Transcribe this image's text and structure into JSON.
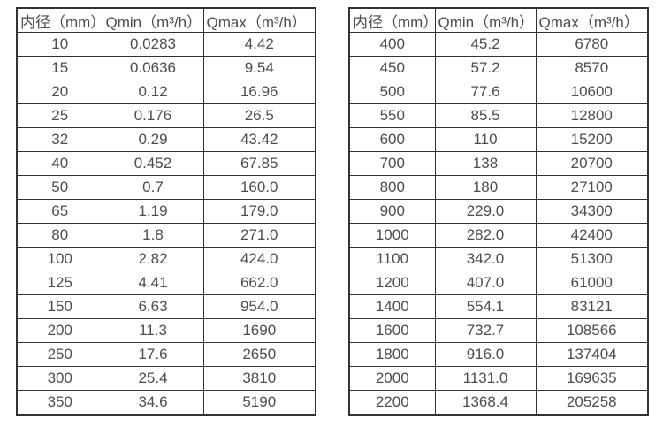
{
  "colors": {
    "border": "#333333",
    "text": "#4d4d4d",
    "background": "#ffffff"
  },
  "headers": [
    "内径（mm）",
    "Qmin（m³/h）",
    "Qmax（m³/h）"
  ],
  "tables": [
    {
      "name": "left",
      "rows": [
        [
          "10",
          "0.0283",
          "4.42"
        ],
        [
          "15",
          "0.0636",
          "9.54"
        ],
        [
          "20",
          "0.12",
          "16.96"
        ],
        [
          "25",
          "0.176",
          "26.5"
        ],
        [
          "32",
          "0.29",
          "43.42"
        ],
        [
          "40",
          "0.452",
          "67.85"
        ],
        [
          "50",
          "0.7",
          "160.0"
        ],
        [
          "65",
          "1.19",
          "179.0"
        ],
        [
          "80",
          "1.8",
          "271.0"
        ],
        [
          "100",
          "2.82",
          "424.0"
        ],
        [
          "125",
          "4.41",
          "662.0"
        ],
        [
          "150",
          "6.63",
          "954.0"
        ],
        [
          "200",
          "11.3",
          "1690"
        ],
        [
          "250",
          "17.6",
          "2650"
        ],
        [
          "300",
          "25.4",
          "3810"
        ],
        [
          "350",
          "34.6",
          "5190"
        ]
      ]
    },
    {
      "name": "right",
      "rows": [
        [
          "400",
          "45.2",
          "6780"
        ],
        [
          "450",
          "57.2",
          "8570"
        ],
        [
          "500",
          "77.6",
          "10600"
        ],
        [
          "550",
          "85.5",
          "12800"
        ],
        [
          "600",
          "110",
          "15200"
        ],
        [
          "700",
          "138",
          "20700"
        ],
        [
          "800",
          "180",
          "27100"
        ],
        [
          "900",
          "229.0",
          "34300"
        ],
        [
          "1000",
          "282.0",
          "42400"
        ],
        [
          "1100",
          "342.0",
          "51300"
        ],
        [
          "1200",
          "407.0",
          "61000"
        ],
        [
          "1400",
          "554.1",
          "83121"
        ],
        [
          "1600",
          "732.7",
          "108566"
        ],
        [
          "1800",
          "916.0",
          "137404"
        ],
        [
          "2000",
          "1131.0",
          "169635"
        ],
        [
          "2200",
          "1368.4",
          "205258"
        ]
      ]
    }
  ]
}
